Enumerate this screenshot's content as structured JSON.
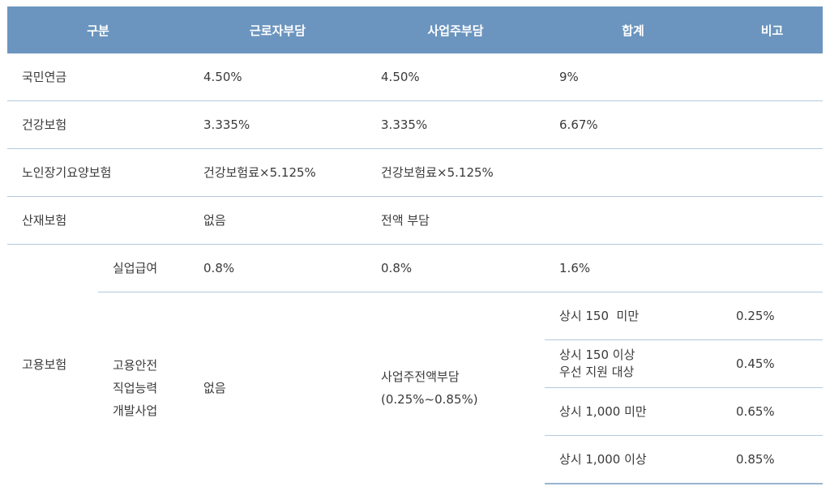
{
  "headers": [
    "구분",
    "근로자부담",
    "사업주부담",
    "합계",
    "비고"
  ],
  "rows": {
    "pension": {
      "label": "국민연금",
      "worker": "4.50%",
      "employer": "4.50%",
      "total": "9%"
    },
    "health": {
      "label": "건강보험",
      "worker": "3.335%",
      "employer": "3.335%",
      "total": "6.67%"
    },
    "ltc": {
      "label": "노인장기요양보험",
      "worker": "건강보험료×5.125%",
      "employer": "건강보험료×5.125%"
    },
    "accident": {
      "label": "산재보험",
      "worker": "없음",
      "employer": "전액 부담"
    },
    "employment": {
      "label": "고용보험",
      "unemployment": {
        "label": "실업급여",
        "worker": "0.8%",
        "employer": "0.8%",
        "total": "1.6%"
      },
      "stability": {
        "label": "고용안전\n직업능력\n개발사업",
        "worker": "없음",
        "employer": "사업주전액부담\n(0.25%~0.85%)",
        "tiers": [
          {
            "label": "상시 150  미만",
            "rate": "0.25%"
          },
          {
            "label": "상시 150 이상\n우선 지원 대상",
            "rate": "0.45%"
          },
          {
            "label": "상시 1,000 미만",
            "rate": "0.65%"
          },
          {
            "label": "상시 1,000 이상",
            "rate": "0.85%"
          }
        ]
      }
    }
  }
}
